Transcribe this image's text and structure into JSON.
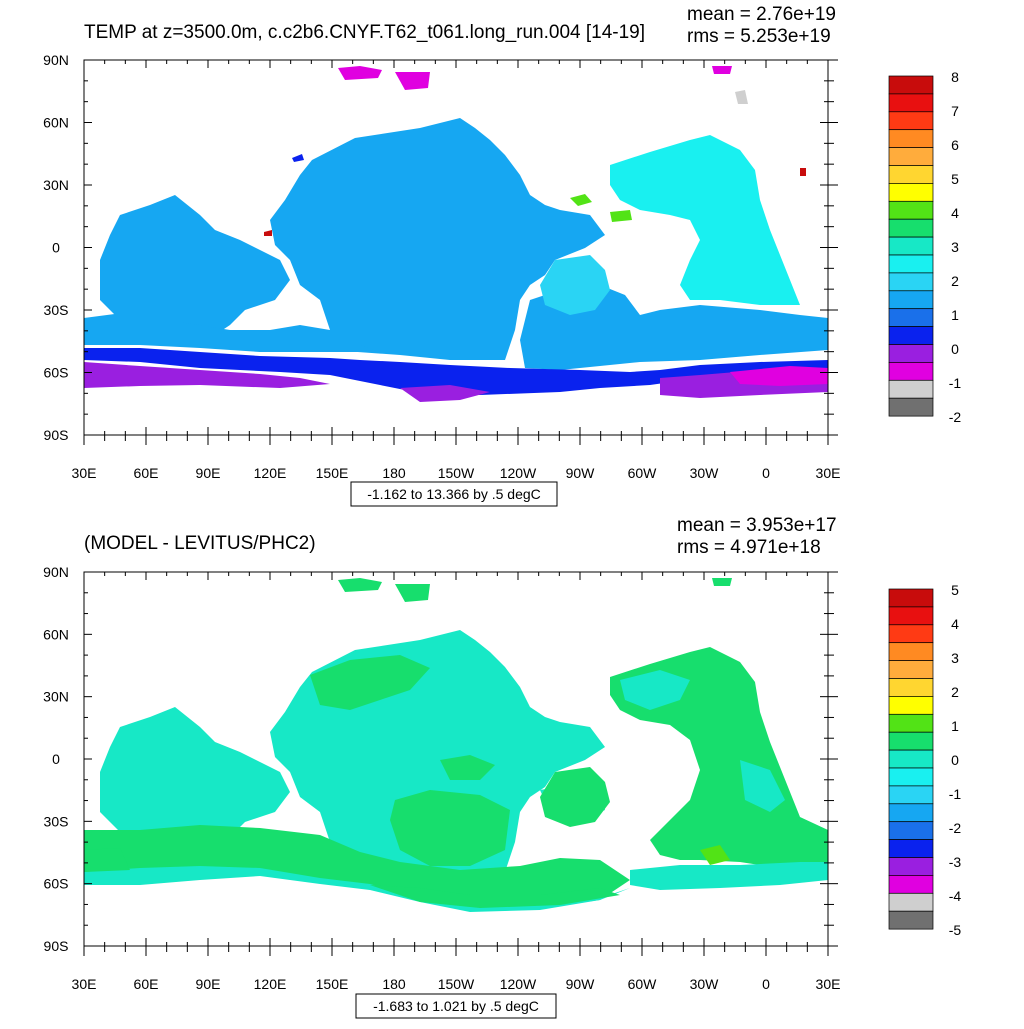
{
  "colors": {
    "temp_palette": [
      "#707070",
      "#cfcfcf",
      "#e000e0",
      "#9a1fe0",
      "#0a22ee",
      "#1a70ea",
      "#16a7f2",
      "#2ad4f4",
      "#19f0f0",
      "#17e8c6",
      "#17de6d",
      "#52e316",
      "#ffff00",
      "#ffd630",
      "#ffac3c",
      "#ff8a22",
      "#ff3a14",
      "#e81010",
      "#c80c0c"
    ],
    "diff_palette": [
      "#707070",
      "#cfcfcf",
      "#e000e0",
      "#9a1fe0",
      "#0a22ee",
      "#1a70ea",
      "#16a7f2",
      "#2ad4f4",
      "#19f0f0",
      "#17e8c6",
      "#17de6d",
      "#52e316",
      "#ffff00",
      "#ffd630",
      "#ffac3c",
      "#ff8a22",
      "#ff3a14",
      "#e81010",
      "#c80c0c"
    ]
  },
  "chart_data": [
    {
      "type": "heatmap",
      "title": "TEMP at z=3500.0m, c.c2b6.CNYF.T62_t061.long_run.004 [14-19]",
      "stats": {
        "mean": "mean = 2.76e+19",
        "rms": "rms = 5.253e+19"
      },
      "x_tick_labels": [
        "30E",
        "60E",
        "90E",
        "120E",
        "150E",
        "180",
        "150W",
        "120W",
        "90W",
        "60W",
        "30W",
        "0",
        "30E"
      ],
      "y_tick_labels": [
        "90N",
        "60N",
        "30N",
        "0",
        "30S",
        "60S",
        "90S"
      ],
      "xlim": [
        30,
        390
      ],
      "ylim": [
        -90,
        90
      ],
      "colorbar_labels": [
        "8",
        "7",
        "6",
        "5",
        "4",
        "3",
        "2",
        "1",
        "0",
        "-1",
        "-2"
      ],
      "contour_info": "-1.162 to 13.366 by .5 degC",
      "dominant_values": {
        "pacific": 1.25,
        "atlantic": 2.25,
        "southern_ocean": -0.25,
        "far_south": -0.75
      }
    },
    {
      "type": "heatmap",
      "title": "(MODEL - LEVITUS/PHC2)",
      "stats": {
        "mean": "mean = 3.953e+17",
        "rms": "rms = 4.971e+18"
      },
      "x_tick_labels": [
        "30E",
        "60E",
        "90E",
        "120E",
        "150E",
        "180",
        "150W",
        "120W",
        "90W",
        "60W",
        "30W",
        "0",
        "30E"
      ],
      "y_tick_labels": [
        "90N",
        "60N",
        "30N",
        "0",
        "30S",
        "60S",
        "90S"
      ],
      "xlim": [
        30,
        390
      ],
      "ylim": [
        -90,
        90
      ],
      "colorbar_labels": [
        "5",
        "4",
        "3",
        "2",
        "1",
        "0",
        "-1",
        "-2",
        "-3",
        "-4",
        "-5"
      ],
      "contour_info": "-1.683 to 1.021 by .5 degC",
      "dominant_values": {
        "pacific": -0.25,
        "atlantic": 0.25,
        "southern_ocean": 0.25
      }
    }
  ]
}
